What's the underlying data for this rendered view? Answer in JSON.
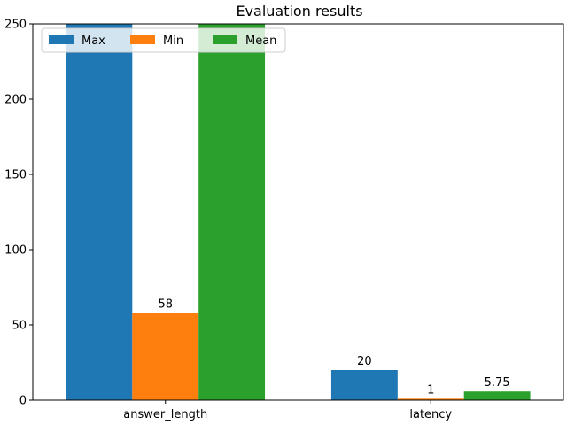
{
  "chart_data": {
    "type": "bar",
    "title": "Evaluation results",
    "xlabel": "",
    "ylabel": "",
    "categories": [
      "answer_length",
      "latency"
    ],
    "series": [
      {
        "name": "Max",
        "values": [
          250,
          20
        ],
        "labels": [
          "",
          "20"
        ],
        "color": "#1f77b4"
      },
      {
        "name": "Min",
        "values": [
          58,
          1
        ],
        "labels": [
          "58",
          "1"
        ],
        "color": "#ff7f0e"
      },
      {
        "name": "Mean",
        "values": [
          250,
          5.75
        ],
        "labels": [
          "",
          "5.75"
        ],
        "color": "#2ca02c"
      }
    ],
    "ylim": [
      0,
      250
    ],
    "yticks": [
      0,
      50,
      100,
      150,
      200,
      250
    ],
    "grid": false,
    "legend": {
      "placement": "upper-left",
      "columns": 3
    }
  }
}
